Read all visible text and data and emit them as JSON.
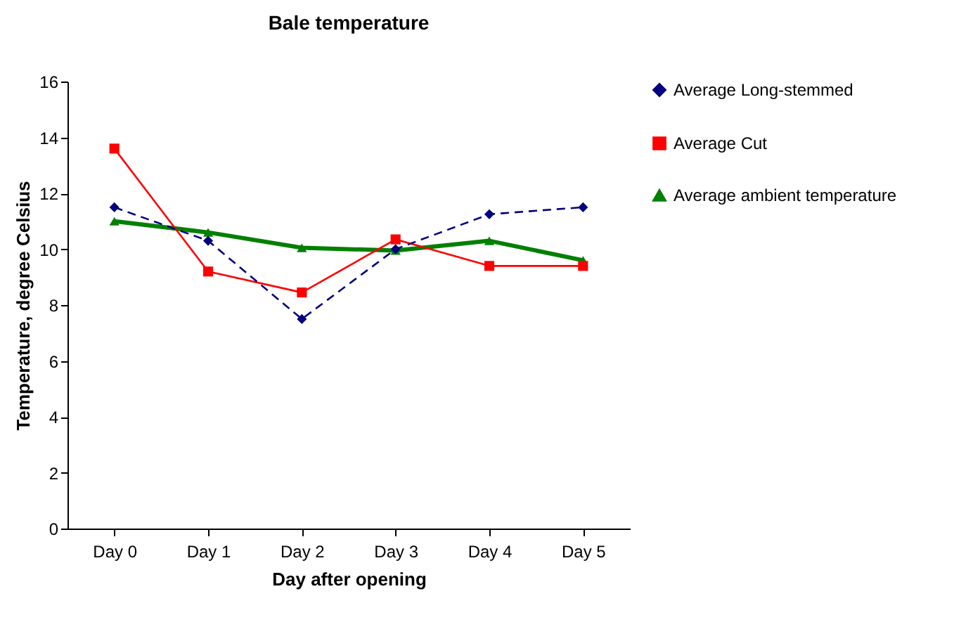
{
  "chart_data": {
    "type": "line",
    "title": "Bale temperature",
    "xlabel": "Day after opening",
    "ylabel": "Temperature, degree Celsius",
    "categories": [
      "Day 0",
      "Day 1",
      "Day 2",
      "Day 3",
      "Day 4",
      "Day 5"
    ],
    "series": [
      {
        "name": "Average Long-stemmed",
        "color": "#000080",
        "marker": "diamond",
        "line_style": "dashed",
        "values": [
          11.5,
          10.3,
          7.5,
          10.0,
          11.25,
          11.5
        ]
      },
      {
        "name": "Average Cut",
        "color": "#ff0000",
        "marker": "square",
        "line_style": "solid",
        "values": [
          13.6,
          9.2,
          8.45,
          10.35,
          9.4,
          9.4
        ]
      },
      {
        "name": "Average ambient temperature",
        "color": "#008000",
        "marker": "triangle",
        "line_style": "solid",
        "values": [
          11.0,
          10.6,
          10.05,
          9.95,
          10.3,
          9.6
        ]
      }
    ],
    "ylim": [
      0,
      16
    ],
    "yticks": [
      0,
      2,
      4,
      6,
      8,
      10,
      12,
      14,
      16
    ],
    "grid": false,
    "legend": "right"
  }
}
